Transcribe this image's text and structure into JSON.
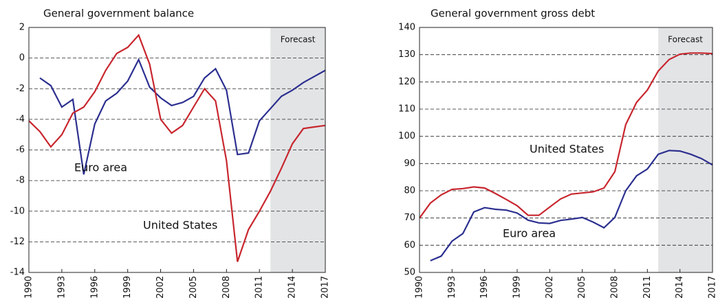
{
  "chart_data": [
    {
      "type": "line",
      "title": "General government balance",
      "x": [
        1990,
        1991,
        1992,
        1993,
        1994,
        1995,
        1996,
        1997,
        1998,
        1999,
        2000,
        2001,
        2002,
        2003,
        2004,
        2005,
        2006,
        2007,
        2008,
        2009,
        2010,
        2011,
        2012,
        2013,
        2014,
        2015,
        2016,
        2017
      ],
      "series": [
        {
          "name": "Euro area",
          "color": "#2b2f8f",
          "values": [
            null,
            -1.3,
            -1.8,
            -3.2,
            -2.7,
            -7.6,
            -4.3,
            -2.8,
            -2.3,
            -1.5,
            -0.1,
            -1.9,
            -2.6,
            -3.1,
            -2.9,
            -2.5,
            -1.3,
            -0.7,
            -2.1,
            -6.3,
            -6.2,
            -4.1,
            -3.3,
            -2.5,
            -2.1,
            -1.6,
            -1.2,
            -0.8
          ]
        },
        {
          "name": "United States",
          "color": "#c8262e",
          "values": [
            -4.1,
            -4.8,
            -5.8,
            -5.0,
            -3.6,
            -3.2,
            -2.2,
            -0.8,
            0.3,
            0.7,
            1.5,
            -0.4,
            -4.0,
            -4.9,
            -4.4,
            -3.2,
            -2.0,
            -2.8,
            -6.7,
            -13.3,
            -11.2,
            -10.0,
            -8.7,
            -7.2,
            -5.6,
            -4.6,
            -4.5,
            -4.4
          ]
        }
      ],
      "xlim": [
        1990,
        2017
      ],
      "xticks": [
        1990,
        1993,
        1996,
        1999,
        2002,
        2005,
        2008,
        2011,
        2014,
        2017
      ],
      "ylim": [
        -14,
        2
      ],
      "yticks": [
        -14,
        -12,
        -10,
        -8,
        -6,
        -4,
        -2,
        0,
        2
      ],
      "grid": true,
      "forecast": {
        "label": "Forecast",
        "start": 2012
      }
    },
    {
      "type": "line",
      "title": "General government gross debt",
      "x": [
        1990,
        1991,
        1992,
        1993,
        1994,
        1995,
        1996,
        1997,
        1998,
        1999,
        2000,
        2001,
        2002,
        2003,
        2004,
        2005,
        2006,
        2007,
        2008,
        2009,
        2010,
        2011,
        2012,
        2013,
        2014,
        2015,
        2016,
        2017
      ],
      "series": [
        {
          "name": "Euro area",
          "color": "#2b2f8f",
          "values": [
            null,
            54.3,
            56,
            61.5,
            64.3,
            72.2,
            73.8,
            73.2,
            72.9,
            71.8,
            69.2,
            68.2,
            68,
            69.1,
            69.6,
            70.2,
            68.5,
            66.4,
            70.2,
            80,
            85.5,
            88,
            93.4,
            94.8,
            94.6,
            93.4,
            91.8,
            89.5
          ]
        },
        {
          "name": "United States",
          "color": "#c8262e",
          "values": [
            70,
            75.5,
            78.5,
            80.5,
            80.8,
            81.4,
            81,
            79,
            76.8,
            74.5,
            71,
            71,
            74,
            77,
            78.8,
            79.2,
            79.6,
            81,
            87,
            104.3,
            112.5,
            117,
            124,
            128.2,
            130.2,
            130.6,
            130.6,
            130.4
          ]
        }
      ],
      "xlim": [
        1990,
        2017
      ],
      "xticks": [
        1990,
        1993,
        1996,
        1999,
        2002,
        2005,
        2008,
        2011,
        2014,
        2017
      ],
      "ylim": [
        50,
        140
      ],
      "yticks": [
        50,
        60,
        70,
        80,
        90,
        100,
        110,
        120,
        130,
        140
      ],
      "grid": true,
      "forecast": {
        "label": "Forecast",
        "start": 2012
      }
    }
  ]
}
